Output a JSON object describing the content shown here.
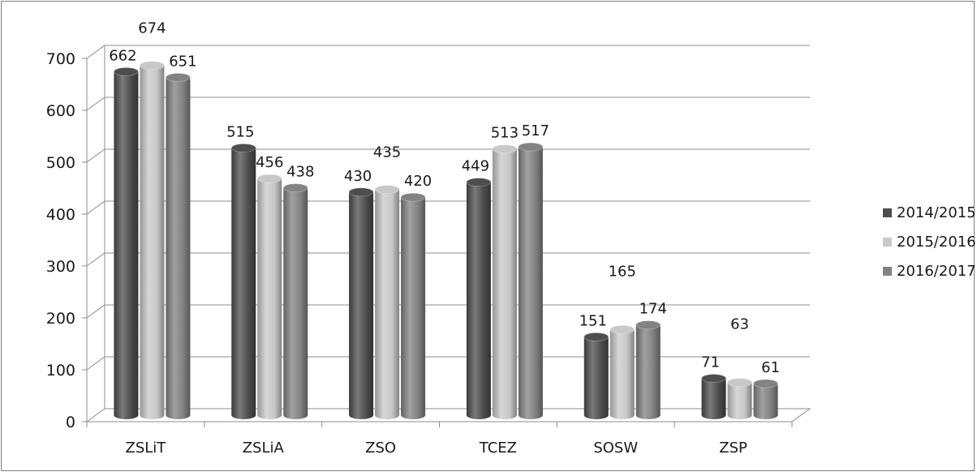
{
  "chart_data": {
    "type": "bar",
    "categories": [
      "ZSLiT",
      "ZSLiA",
      "ZSO",
      "TCEZ",
      "SOSW",
      "ZSP"
    ],
    "series": [
      {
        "name": "2014/2015",
        "values": [
          662,
          515,
          430,
          449,
          151,
          71
        ],
        "color": "#4d4d4d"
      },
      {
        "name": "2015/2016",
        "values": [
          674,
          456,
          435,
          513,
          165,
          63
        ],
        "color": "#c8c8c8"
      },
      {
        "name": "2016/2017",
        "values": [
          651,
          438,
          420,
          517,
          174,
          61
        ],
        "color": "#828282"
      }
    ],
    "yticks": [
      "0",
      "100",
      "200",
      "300",
      "400",
      "500",
      "600",
      "700"
    ],
    "ylim": [
      0,
      700
    ],
    "grid": true,
    "legend_position": "right",
    "style": "3d-cylinder"
  }
}
